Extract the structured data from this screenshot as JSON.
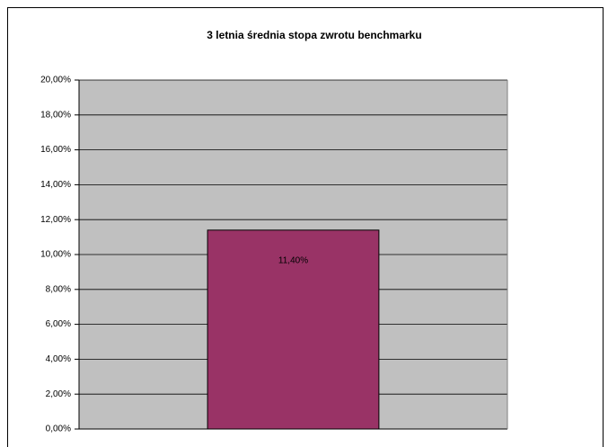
{
  "chart_data": {
    "type": "bar",
    "title": "3 letnia średnia stopa zwrotu benchmarku",
    "categories": [
      null
    ],
    "values": [
      11.4
    ],
    "value_labels": [
      "11,40%"
    ],
    "color": "#993366",
    "ylim": [
      0,
      20
    ],
    "yticks": [
      {
        "value": 0,
        "label": "0,00%"
      },
      {
        "value": 2,
        "label": "2,00%"
      },
      {
        "value": 4,
        "label": "4,00%"
      },
      {
        "value": 6,
        "label": "6,00%"
      },
      {
        "value": 8,
        "label": "8,00%"
      },
      {
        "value": 10,
        "label": "10,00%"
      },
      {
        "value": 12,
        "label": "12,00%"
      },
      {
        "value": 14,
        "label": "14,00%"
      },
      {
        "value": 16,
        "label": "16,00%"
      },
      {
        "value": 18,
        "label": "18,00%"
      },
      {
        "value": 20,
        "label": "20,00%"
      }
    ],
    "grid": true
  }
}
